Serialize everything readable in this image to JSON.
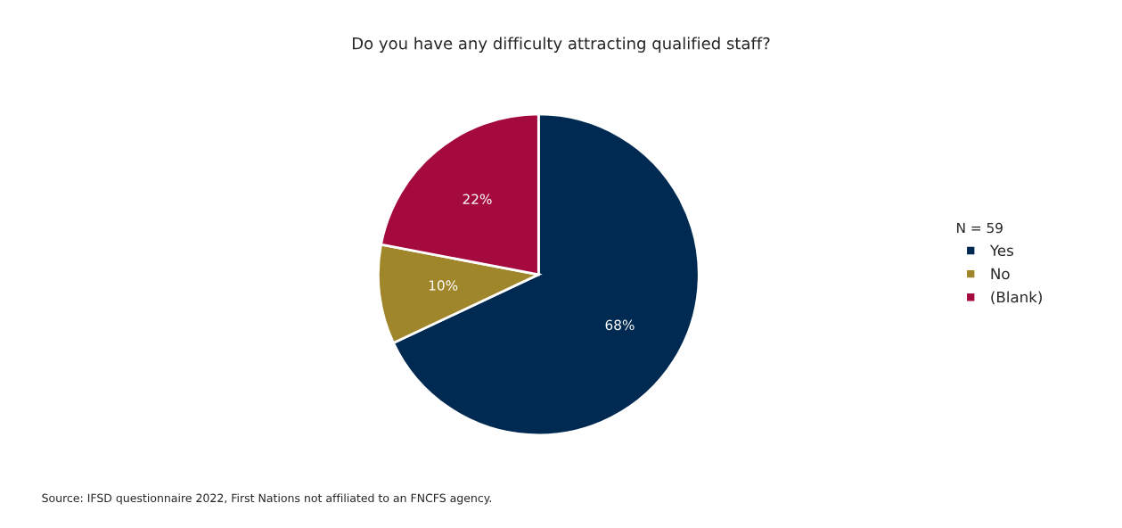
{
  "chart_data": {
    "type": "pie",
    "title": "Do you have any difficulty attracting qualified staff?",
    "categories": [
      "Yes",
      "No",
      "(Blank)"
    ],
    "values": [
      68,
      10,
      22
    ],
    "colors": [
      "#002a52",
      "#a0862b",
      "#a50a3e"
    ],
    "value_labels": [
      "68%",
      "10%",
      "22%"
    ],
    "legend_title": "N = 59",
    "legend": "right",
    "annotations": [
      "Source: IFSD questionnaire 2022, First Nations not affiliated to an FNCFS agency."
    ]
  }
}
